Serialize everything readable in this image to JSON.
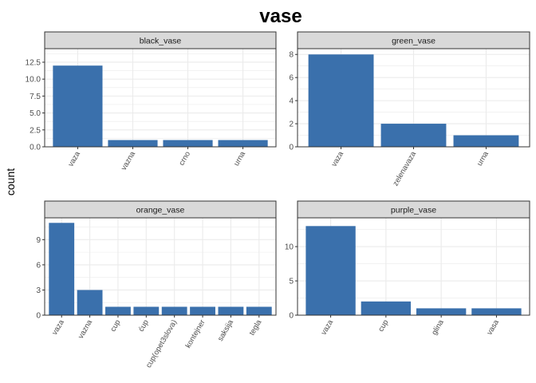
{
  "figure": {
    "title": "vase",
    "ylabel": "count",
    "bar_color": "#3A70AC",
    "strip_fill": "#D9D9D9",
    "grid_color": "#EBEBEB",
    "frame_color": "#333333"
  },
  "chart_data": [
    {
      "type": "bar",
      "title": "black_vase",
      "categories": [
        "vaza",
        "vazna",
        "crno",
        "urna"
      ],
      "values": [
        12,
        1,
        1,
        1
      ],
      "ylim": [
        0,
        14.5
      ],
      "yticks": [
        0,
        2.5,
        5,
        7.5,
        10,
        12.5
      ],
      "ytick_labels": [
        "0.0",
        "2.5",
        "5.0",
        "7.5",
        "10.0",
        "12.5"
      ],
      "grid": true
    },
    {
      "type": "bar",
      "title": "green_vase",
      "categories": [
        "vaza",
        "zelenavaza",
        "urna"
      ],
      "values": [
        8,
        2,
        1
      ],
      "ylim": [
        0,
        8.5
      ],
      "yticks": [
        0,
        2,
        4,
        6,
        8
      ],
      "ytick_labels": [
        "0",
        "2",
        "4",
        "6",
        "8"
      ],
      "grid": true
    },
    {
      "type": "bar",
      "title": "orange_vase",
      "categories": [
        "vaza",
        "vazna",
        "cup",
        "ćup",
        "cup(opet3slova)",
        "kontejner",
        "saksija",
        "tegla"
      ],
      "values": [
        11,
        3,
        1,
        1,
        1,
        1,
        1,
        1
      ],
      "ylim": [
        0,
        11.6
      ],
      "yticks": [
        0,
        3,
        6,
        9
      ],
      "ytick_labels": [
        "0",
        "3",
        "6",
        "9"
      ],
      "grid": true
    },
    {
      "type": "bar",
      "title": "purple_vase",
      "categories": [
        "vaza",
        "cup",
        "glina",
        "vasa"
      ],
      "values": [
        13,
        2,
        1,
        1
      ],
      "ylim": [
        0,
        14.2
      ],
      "yticks": [
        0,
        5,
        10
      ],
      "ytick_labels": [
        "0",
        "5",
        "10"
      ],
      "grid": true
    }
  ]
}
